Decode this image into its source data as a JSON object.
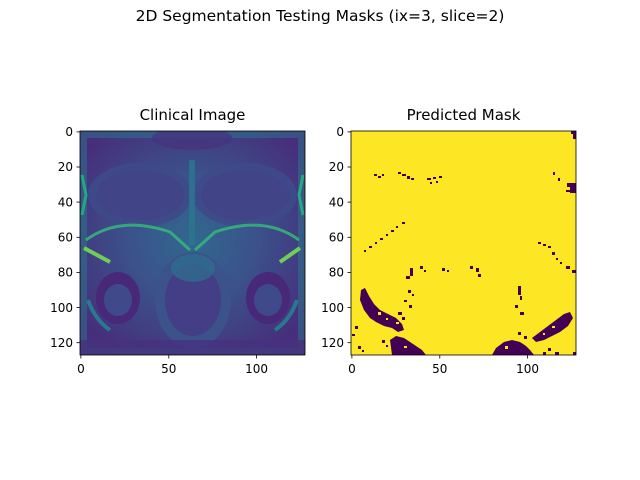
{
  "figure": {
    "suptitle": "2D Segmentation Testing Masks (ix=3, slice=2)"
  },
  "colors": {
    "viridis_low": "#440154",
    "viridis_high": "#fde725",
    "viridis_teal": "#21918c",
    "viridis_green": "#5ec962"
  },
  "chart_data": [
    {
      "type": "heatmap",
      "title": "Clinical Image",
      "colormap": "viridis",
      "image_size": [
        128,
        128
      ],
      "x_ticks": [
        0,
        50,
        100
      ],
      "y_ticks": [
        0,
        20,
        40,
        60,
        80,
        100,
        120
      ],
      "xlim": [
        0,
        127
      ],
      "ylim": [
        127,
        0
      ]
    },
    {
      "type": "heatmap",
      "title": "Predicted Mask",
      "colormap": "viridis",
      "image_size": [
        128,
        128
      ],
      "values_present": [
        0,
        1
      ],
      "x_ticks": [
        0,
        50,
        100
      ],
      "y_ticks": [
        0,
        20,
        40,
        60,
        80,
        100,
        120
      ],
      "xlim": [
        0,
        127
      ],
      "ylim": [
        127,
        0
      ]
    }
  ]
}
